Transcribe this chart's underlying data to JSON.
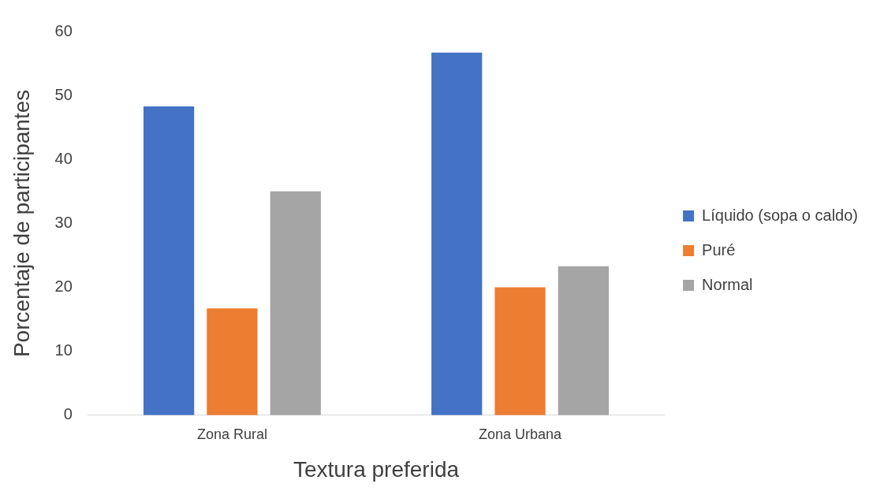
{
  "chart_data": {
    "type": "bar",
    "xlabel": "Textura preferida",
    "ylabel": "Porcentaje de participantes",
    "categories": [
      "Zona Rural",
      "Zona Urbana"
    ],
    "series": [
      {
        "name": "Líquido (sopa o caldo)",
        "color": "#4472c4",
        "values": [
          48.3,
          56.7
        ]
      },
      {
        "name": "Puré",
        "color": "#ed7d31",
        "values": [
          16.7,
          20
        ]
      },
      {
        "name": "Normal",
        "color": "#a5a5a5",
        "values": [
          35,
          23.3
        ]
      }
    ],
    "ylim": [
      0,
      60
    ],
    "yticks": [
      0,
      10,
      20,
      30,
      40,
      50,
      60
    ],
    "grid": false,
    "legend": "right"
  }
}
